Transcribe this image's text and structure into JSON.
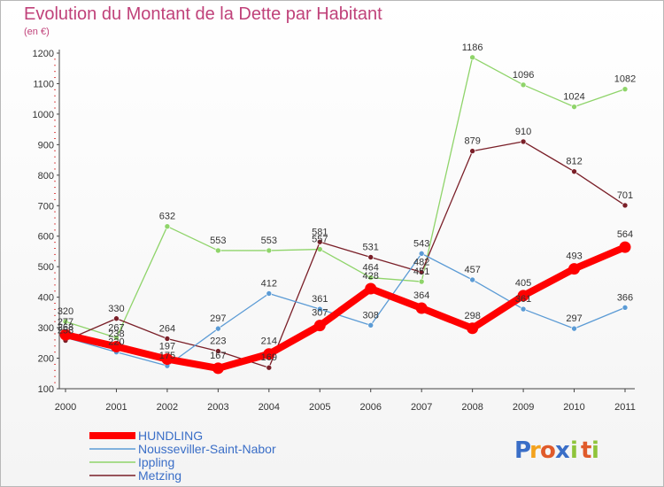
{
  "chart_data": {
    "type": "line",
    "title": "Evolution du Montant de la Dette par Habitant",
    "unit": "(en €)",
    "categories": [
      "2000",
      "2001",
      "2002",
      "2003",
      "2004",
      "2005",
      "2006",
      "2007",
      "2008",
      "2009",
      "2010",
      "2011"
    ],
    "ylim": [
      100,
      1200
    ],
    "yticks": [
      "100",
      "200",
      "300",
      "400",
      "500",
      "600",
      "700",
      "800",
      "900",
      "1000",
      "1100",
      "1200"
    ],
    "grid": false,
    "legend_position": "bottom-left",
    "series": [
      {
        "name": "Ippling",
        "color": "#8fd46a",
        "values": [
          320,
          267,
          632,
          553,
          553,
          557,
          464,
          451,
          1186,
          1096,
          1024,
          1082
        ],
        "labels": [
          "320",
          "267",
          "632",
          "553",
          "553",
          "557",
          "464",
          "451",
          "1186",
          "1096",
          "1024",
          "1082"
        ]
      },
      {
        "name": "Metzing",
        "color": "#7a1f28",
        "values": [
          258,
          330,
          264,
          223,
          169,
          581,
          531,
          482,
          879,
          910,
          812,
          701
        ],
        "labels": [
          "258",
          "330",
          "264",
          "223",
          "169",
          "581",
          "531",
          "482",
          "879",
          "910",
          "812",
          "701"
        ]
      },
      {
        "name": "Nousseviller-Saint-Nabor",
        "color": "#5b9bd5",
        "values": [
          268,
          220,
          175,
          297,
          412,
          361,
          308,
          543,
          457,
          361,
          297,
          366
        ],
        "labels": [
          "268",
          "220",
          "175",
          "297",
          "412",
          "361",
          "308",
          "543",
          "457",
          "361",
          "297",
          "366"
        ]
      },
      {
        "name": "HUNDLING",
        "color": "#ff0000",
        "values": [
          277,
          238,
          197,
          167,
          214,
          307,
          428,
          364,
          298,
          405,
          493,
          564
        ],
        "labels": [
          "277",
          "238",
          "197",
          "167",
          "214",
          "307",
          "428",
          "364",
          "298",
          "405",
          "493",
          "564"
        ]
      }
    ],
    "legend": [
      "HUNDLING",
      "Nousseviller-Saint-Nabor",
      "Ippling",
      "Metzing"
    ]
  },
  "logo": {
    "text": "Proxiti",
    "letters": [
      "P",
      "r",
      "o",
      "x",
      "i",
      "t",
      "i"
    ],
    "colors": [
      "#3a6ec7",
      "#f3a21d",
      "#e05a2a",
      "#3a6ec7",
      "#8fc43a",
      "#e05a2a",
      "#8fc43a"
    ]
  }
}
